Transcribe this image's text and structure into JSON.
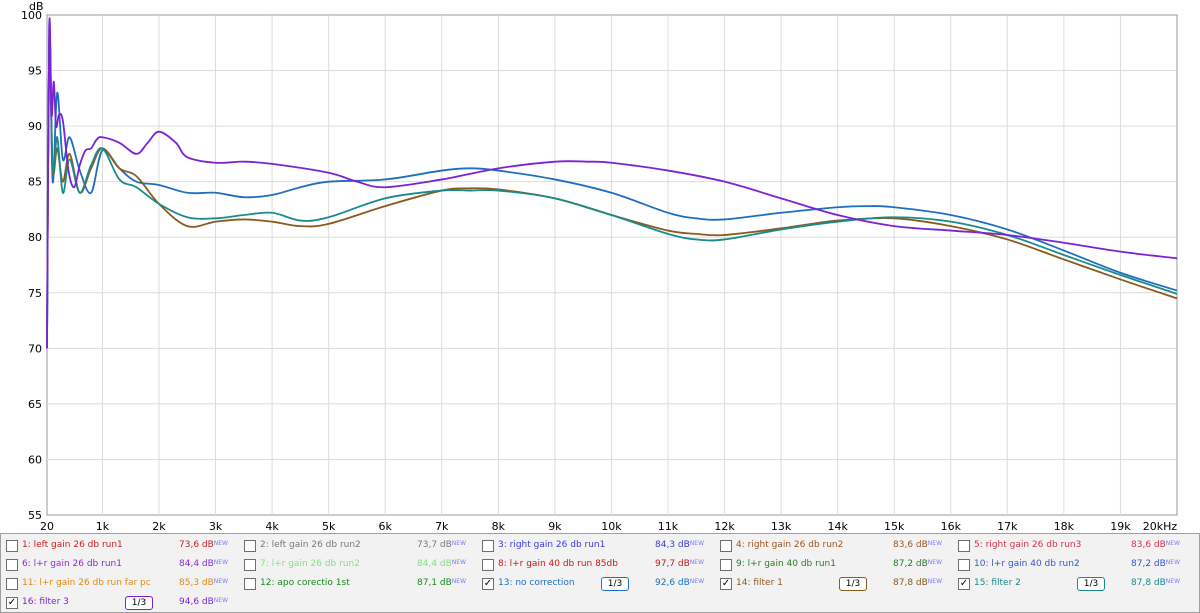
{
  "chart_data": {
    "type": "line",
    "ylabel": "dB",
    "ylim": [
      55,
      100
    ],
    "yticks": [
      "55",
      "60",
      "65",
      "70",
      "75",
      "80",
      "85",
      "90",
      "95",
      "100"
    ],
    "xlim": [
      20,
      20000
    ],
    "xticks": [
      "20",
      "1k",
      "2k",
      "3k",
      "4k",
      "5k",
      "6k",
      "7k",
      "8k",
      "9k",
      "10k",
      "11k",
      "12k",
      "13k",
      "14k",
      "15k",
      "16k",
      "17k",
      "18k",
      "19k",
      "20kHz"
    ],
    "grid": true,
    "series": [
      {
        "name": "13: no correction",
        "color": "#1f6fbf",
        "x": [
          20,
          60,
          120,
          200,
          300,
          420,
          600,
          800,
          1000,
          1300,
          1600,
          2000,
          2500,
          3000,
          3500,
          4000,
          4500,
          5000,
          6000,
          7000,
          7500,
          8000,
          9000,
          10000,
          11000,
          11500,
          12000,
          13000,
          14000,
          14500,
          15000,
          16000,
          17000,
          18000,
          19000,
          20000
        ],
        "y": [
          70,
          99,
          85,
          93,
          87,
          89,
          86,
          84,
          87.8,
          86.2,
          85,
          84.7,
          84,
          84,
          83.6,
          83.8,
          84.5,
          85,
          85.2,
          86,
          86.2,
          86,
          85.2,
          84,
          82.2,
          81.7,
          81.6,
          82.2,
          82.7,
          82.8,
          82.7,
          82,
          80.7,
          78.8,
          76.8,
          75.2
        ]
      },
      {
        "name": "14: filter 1",
        "color": "#8b5a1e",
        "x": [
          20,
          60,
          120,
          200,
          300,
          420,
          600,
          800,
          1000,
          1300,
          1600,
          2000,
          2500,
          3000,
          3500,
          4000,
          4500,
          5000,
          6000,
          7000,
          7500,
          8000,
          9000,
          10000,
          11000,
          11500,
          12000,
          13000,
          14000,
          15000,
          16000,
          17000,
          18000,
          19000,
          20000
        ],
        "y": [
          70,
          98,
          86,
          88,
          85,
          87.5,
          84,
          86.2,
          88,
          86.2,
          85.5,
          83,
          81,
          81.4,
          81.6,
          81.4,
          81,
          81.2,
          82.8,
          84.2,
          84.4,
          84.3,
          83.5,
          82,
          80.6,
          80.3,
          80.2,
          80.8,
          81.5,
          81.7,
          81,
          79.8,
          78,
          76.2,
          74.5
        ]
      },
      {
        "name": "15: filter 2",
        "color": "#1a8a8a",
        "x": [
          20,
          60,
          120,
          200,
          300,
          420,
          600,
          800,
          1000,
          1300,
          1600,
          2000,
          2500,
          3000,
          3500,
          4000,
          4500,
          5000,
          6000,
          7000,
          7500,
          8000,
          9000,
          10000,
          11000,
          11500,
          12000,
          13000,
          14000,
          15000,
          16000,
          17000,
          18000,
          19000,
          20000
        ],
        "y": [
          70,
          98,
          86,
          89,
          84,
          87,
          84,
          86.5,
          88,
          85.2,
          84.5,
          83,
          81.8,
          81.7,
          82,
          82.2,
          81.5,
          81.8,
          83.5,
          84.2,
          84.2,
          84.2,
          83.5,
          82,
          80.3,
          79.8,
          79.8,
          80.7,
          81.4,
          81.8,
          81.4,
          80.2,
          78.4,
          76.6,
          74.9
        ]
      },
      {
        "name": "16: filter 3",
        "color": "#7b22d8",
        "x": [
          20,
          60,
          100,
          140,
          180,
          230,
          300,
          400,
          500,
          600,
          700,
          800,
          900,
          1000,
          1300,
          1600,
          1800,
          2000,
          2300,
          2500,
          3000,
          3500,
          4000,
          5000,
          5500,
          6000,
          7000,
          8000,
          9000,
          9600,
          10000,
          11000,
          12000,
          13000,
          14000,
          15000,
          16000,
          17000,
          18000,
          19000,
          20000
        ],
        "y": [
          70,
          99,
          91,
          94,
          90,
          91,
          90.5,
          86,
          84.5,
          86.5,
          87.8,
          88,
          88.8,
          89,
          88.5,
          87.5,
          88.5,
          89.5,
          88.5,
          87.2,
          86.7,
          86.8,
          86.6,
          85.8,
          85,
          84.5,
          85.2,
          86.2,
          86.8,
          86.8,
          86.7,
          86,
          85,
          83.5,
          82,
          81,
          80.6,
          80.2,
          79.5,
          78.7,
          78.1
        ]
      }
    ]
  },
  "legend": [
    {
      "label": "1: left gain 26 db run1",
      "value": "73,6 dB",
      "checked": false,
      "color": "#cc2222"
    },
    {
      "label": "2: left gain 26 db run2",
      "value": "73,7 dB",
      "checked": false,
      "color": "#777777"
    },
    {
      "label": "3: right gain 26 db run1",
      "value": "84,3 dB",
      "checked": false,
      "color": "#3b3bdc"
    },
    {
      "label": "4: right gain 26 db run2",
      "value": "83,6 dB",
      "checked": false,
      "color": "#a0551e"
    },
    {
      "label": "5: right gain 26 db run3",
      "value": "83,6 dB",
      "checked": false,
      "color": "#d9334a"
    },
    {
      "label": "6: l+r gain 26 db run1",
      "value": "84,4 dB",
      "checked": false,
      "color": "#8a2bd6"
    },
    {
      "label": "7: l+r gain 26 db run2",
      "value": "84,4 dB",
      "checked": false,
      "color": "#88dd88"
    },
    {
      "label": "8: l+r gain 40 db run 85db",
      "value": "97,7 dB",
      "checked": false,
      "color": "#c41a1a"
    },
    {
      "label": "9: l+r gain 40 db run1",
      "value": "87,2 dB",
      "checked": false,
      "color": "#2a7a2a"
    },
    {
      "label": "10: l+r gain 40 db run2",
      "value": "87,2 dB",
      "checked": false,
      "color": "#3355cc"
    },
    {
      "label": "11: l+r gain 26 db run far pc",
      "value": "85,3 dB",
      "checked": false,
      "color": "#e08a1a"
    },
    {
      "label": "12: apo corectio 1st",
      "value": "87,1 dB",
      "checked": false,
      "color": "#1a8a1a"
    },
    {
      "label": "13: no correction",
      "value": "92,6 dB",
      "checked": true,
      "color": "#1f6fbf",
      "smoothing": "1/3"
    },
    {
      "label": "14: filter 1",
      "value": "87,8 dB",
      "checked": true,
      "color": "#8b5a1e",
      "smoothing": "1/3"
    },
    {
      "label": "15: filter 2",
      "value": "87,8 dB",
      "checked": true,
      "color": "#1a8a8a",
      "smoothing": "1/3"
    },
    {
      "label": "16: filter 3",
      "value": "94,6 dB",
      "checked": true,
      "color": "#7b22d8",
      "smoothing": "1/3"
    }
  ],
  "new_badge": "NEW",
  "check_mark": "✓"
}
